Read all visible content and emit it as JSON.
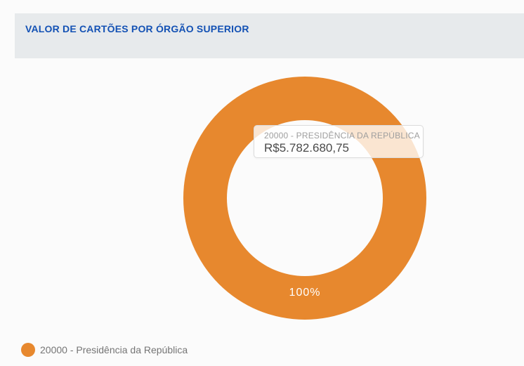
{
  "panel": {
    "title": "VALOR DE CARTÕES POR ÓRGÃO SUPERIOR"
  },
  "colors": {
    "accent_orange": "#E7882E",
    "title_blue": "#1351B4",
    "header_bg": "#E7EAEC",
    "page_bg": "#FBFBFB"
  },
  "tooltip": {
    "series_label": "20000 - PRESIDÊNCIA DA REPÚBLICA",
    "value": "R$5.782.680,75"
  },
  "legend": {
    "items": [
      {
        "label": "20000 - Presidência da República",
        "color": "#E7882E"
      }
    ]
  },
  "chart_data": {
    "type": "pie",
    "subtype": "donut",
    "title": "VALOR DE CARTÕES POR ÓRGÃO SUPERIOR",
    "categories": [
      "20000 - Presidência da República"
    ],
    "values": [
      5782680.75
    ],
    "values_formatted": [
      "R$5.782.680,75"
    ],
    "percentages": [
      100
    ],
    "percent_labels": [
      "100%"
    ],
    "colors": [
      "#E7882E"
    ],
    "currency": "BRL",
    "legend_position": "bottom-left",
    "hovered_slice": "20000 - Presidência da República"
  }
}
